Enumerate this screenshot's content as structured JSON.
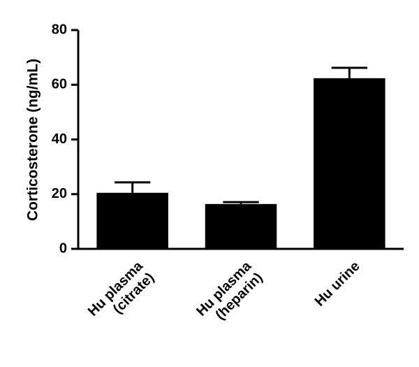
{
  "chart_data": {
    "type": "bar",
    "y_label": "Corticosterone (ng/mL)",
    "categories": [
      [
        "Hu plasma",
        "(citrate)"
      ],
      [
        "Hu plasma",
        "(heparin)"
      ],
      [
        "Hu urine"
      ]
    ],
    "values": [
      20.5,
      16.4,
      62.4
    ],
    "errors": [
      3.8,
      0.7,
      3.8
    ],
    "color": "#000000",
    "ylim": [
      0,
      80
    ],
    "yticks": [
      0,
      20,
      40,
      60,
      80
    ],
    "grid": false
  }
}
